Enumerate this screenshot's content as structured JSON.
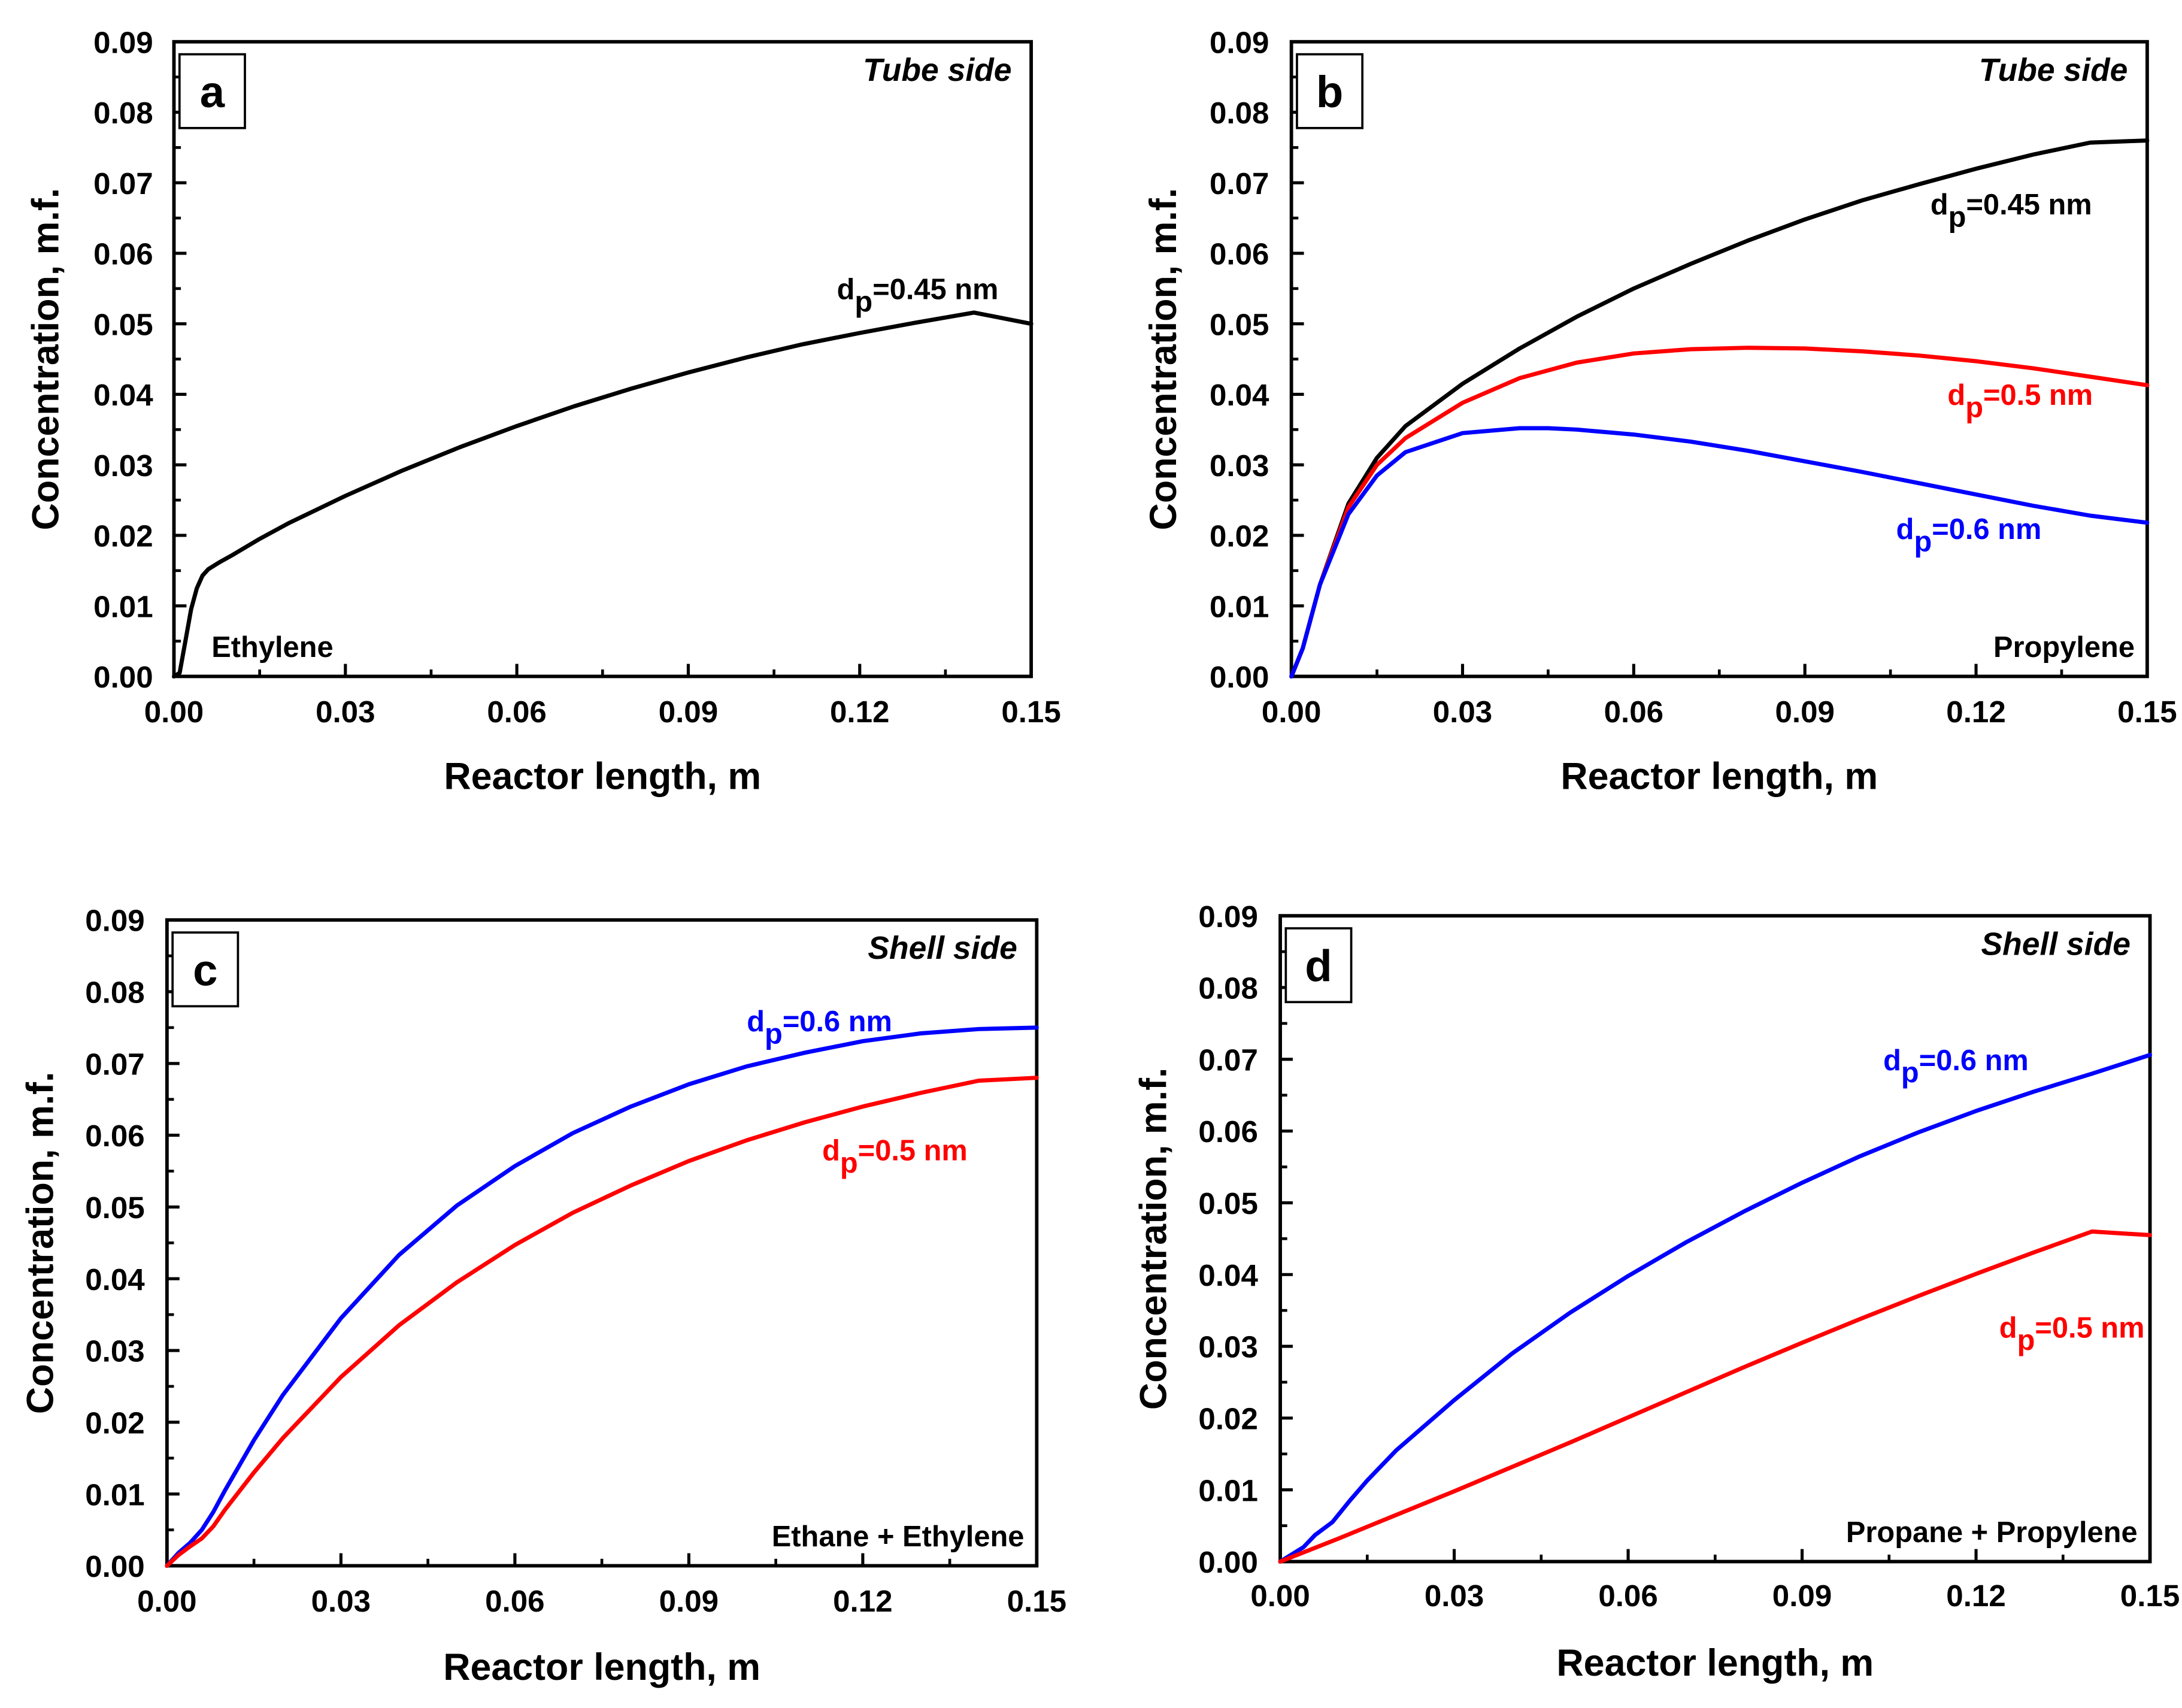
{
  "colors": {
    "black": "#000000",
    "red": "#ff0000",
    "blue": "#0000ff",
    "axis": "#000000"
  },
  "chart_data": [
    {
      "type": "line",
      "panel": "a",
      "side_label": "Tube side",
      "species_label": "Ethylene",
      "species_position": "bottom-left",
      "xlabel": "Reactor length, m",
      "ylabel": "Concentration, m.f.",
      "xlim": [
        0,
        0.15
      ],
      "ylim": [
        0,
        0.09
      ],
      "xticks": [
        "0.00",
        "0.03",
        "0.06",
        "0.09",
        "0.12",
        "0.15"
      ],
      "yticks": [
        "0.00",
        "0.01",
        "0.02",
        "0.03",
        "0.04",
        "0.05",
        "0.06",
        "0.07",
        "0.08",
        "0.09"
      ],
      "series": [
        {
          "name": "dp=0.45 nm",
          "label_main": "d",
          "label_sub": "p",
          "label_rest": "=0.45 nm",
          "color": "#000000",
          "label_at": [
            0.116,
            0.0535
          ],
          "x": [
            0,
            0.001,
            0.002,
            0.003,
            0.004,
            0.005,
            0.006,
            0.008,
            0.01,
            0.015,
            0.02,
            0.03,
            0.04,
            0.05,
            0.06,
            0.07,
            0.08,
            0.09,
            0.1,
            0.11,
            0.12,
            0.13,
            0.14,
            0.15
          ],
          "y": [
            0,
            0.0005,
            0.005,
            0.0095,
            0.0125,
            0.0143,
            0.0152,
            0.0162,
            0.0171,
            0.0195,
            0.0217,
            0.0256,
            0.0292,
            0.0325,
            0.0355,
            0.0383,
            0.0408,
            0.0431,
            0.0452,
            0.0471,
            0.0487,
            0.0502,
            0.0516,
            0.05
          ]
        }
      ]
    },
    {
      "type": "line",
      "panel": "b",
      "side_label": "Tube side",
      "species_label": "Propylene",
      "species_position": "bottom-right",
      "xlabel": "Reactor length, m",
      "ylabel": "Concentration, m.f.",
      "xlim": [
        0,
        0.15
      ],
      "ylim": [
        0,
        0.09
      ],
      "xticks": [
        "0.00",
        "0.03",
        "0.06",
        "0.09",
        "0.12",
        "0.15"
      ],
      "yticks": [
        "0.00",
        "0.01",
        "0.02",
        "0.03",
        "0.04",
        "0.05",
        "0.06",
        "0.07",
        "0.08",
        "0.09"
      ],
      "series": [
        {
          "name": "dp=0.45 nm",
          "label_main": "d",
          "label_sub": "p",
          "label_rest": "=0.45 nm",
          "color": "#000000",
          "label_at": [
            0.112,
            0.0655
          ],
          "x": [
            0,
            0.002,
            0.005,
            0.01,
            0.015,
            0.02,
            0.03,
            0.04,
            0.05,
            0.06,
            0.07,
            0.08,
            0.09,
            0.1,
            0.11,
            0.12,
            0.13,
            0.14,
            0.15
          ],
          "y": [
            0,
            0.004,
            0.013,
            0.0245,
            0.031,
            0.0355,
            0.0415,
            0.0465,
            0.051,
            0.055,
            0.0585,
            0.0618,
            0.0648,
            0.0675,
            0.0698,
            0.072,
            0.074,
            0.0757,
            0.076
          ]
        },
        {
          "name": "dp=0.5 nm",
          "label_main": "d",
          "label_sub": "p",
          "label_rest": "=0.5 nm",
          "color": "#ff0000",
          "label_at": [
            0.115,
            0.0385
          ],
          "x": [
            0,
            0.002,
            0.005,
            0.01,
            0.015,
            0.02,
            0.03,
            0.04,
            0.05,
            0.06,
            0.07,
            0.08,
            0.09,
            0.1,
            0.11,
            0.12,
            0.13,
            0.14,
            0.15
          ],
          "y": [
            0,
            0.004,
            0.013,
            0.024,
            0.03,
            0.0338,
            0.0388,
            0.0423,
            0.0445,
            0.0458,
            0.0464,
            0.0466,
            0.0465,
            0.0461,
            0.0455,
            0.0447,
            0.0437,
            0.0425,
            0.0413
          ]
        },
        {
          "name": "dp=0.6 nm",
          "label_main": "d",
          "label_sub": "p",
          "label_rest": "=0.6 nm",
          "color": "#0000ff",
          "label_at": [
            0.106,
            0.0195
          ],
          "x": [
            0,
            0.002,
            0.005,
            0.01,
            0.015,
            0.02,
            0.03,
            0.04,
            0.045,
            0.05,
            0.06,
            0.07,
            0.08,
            0.09,
            0.1,
            0.11,
            0.12,
            0.13,
            0.14,
            0.15
          ],
          "y": [
            0,
            0.004,
            0.013,
            0.023,
            0.0285,
            0.0318,
            0.0345,
            0.0352,
            0.0352,
            0.035,
            0.0343,
            0.0333,
            0.032,
            0.0305,
            0.029,
            0.0274,
            0.0258,
            0.0242,
            0.0228,
            0.0218
          ]
        }
      ]
    },
    {
      "type": "line",
      "panel": "c",
      "side_label": "Shell side",
      "species_label": "Ethane + Ethylene",
      "species_position": "bottom-right",
      "xlabel": "Reactor length, m",
      "ylabel": "Concentration, m.f.",
      "xlim": [
        0,
        0.15
      ],
      "ylim": [
        0,
        0.09
      ],
      "xticks": [
        "0.00",
        "0.03",
        "0.06",
        "0.09",
        "0.12",
        "0.15"
      ],
      "yticks": [
        "0.00",
        "0.01",
        "0.02",
        "0.03",
        "0.04",
        "0.05",
        "0.06",
        "0.07",
        "0.08",
        "0.09"
      ],
      "series": [
        {
          "name": "dp=0.6 nm",
          "label_main": "d",
          "label_sub": "p",
          "label_rest": "=0.6 nm",
          "color": "#0000ff",
          "label_at": [
            0.1,
            0.0745
          ],
          "x": [
            0,
            0.002,
            0.004,
            0.006,
            0.008,
            0.01,
            0.015,
            0.02,
            0.03,
            0.04,
            0.05,
            0.06,
            0.07,
            0.08,
            0.09,
            0.1,
            0.11,
            0.12,
            0.13,
            0.14,
            0.15
          ],
          "y": [
            0,
            0.0018,
            0.0032,
            0.005,
            0.0075,
            0.0105,
            0.0175,
            0.0238,
            0.0345,
            0.0433,
            0.0502,
            0.0557,
            0.0603,
            0.064,
            0.0671,
            0.0696,
            0.0715,
            0.0731,
            0.0742,
            0.0748,
            0.075
          ]
        },
        {
          "name": "dp=0.5 nm",
          "label_main": "d",
          "label_sub": "p",
          "label_rest": "=0.5 nm",
          "color": "#ff0000",
          "label_at": [
            0.113,
            0.0565
          ],
          "x": [
            0,
            0.002,
            0.004,
            0.006,
            0.008,
            0.01,
            0.015,
            0.02,
            0.03,
            0.04,
            0.05,
            0.06,
            0.07,
            0.08,
            0.09,
            0.1,
            0.11,
            0.12,
            0.13,
            0.14,
            0.15
          ],
          "y": [
            0,
            0.0015,
            0.0027,
            0.0038,
            0.0055,
            0.0078,
            0.013,
            0.0178,
            0.0263,
            0.0335,
            0.0395,
            0.0447,
            0.0492,
            0.053,
            0.0564,
            0.0593,
            0.0618,
            0.064,
            0.0659,
            0.0676,
            0.068
          ]
        }
      ]
    },
    {
      "type": "line",
      "panel": "d",
      "side_label": "Shell side",
      "species_label": "Propane + Propylene",
      "species_position": "bottom-right",
      "xlabel": "Reactor length, m",
      "ylabel": "Concentration, m.f.",
      "xlim": [
        0,
        0.15
      ],
      "ylim": [
        0,
        0.09
      ],
      "xticks": [
        "0.00",
        "0.03",
        "0.06",
        "0.09",
        "0.12",
        "0.15"
      ],
      "yticks": [
        "0.00",
        "0.01",
        "0.02",
        "0.03",
        "0.04",
        "0.05",
        "0.06",
        "0.07",
        "0.08",
        "0.09"
      ],
      "series": [
        {
          "name": "dp=0.6 nm",
          "label_main": "d",
          "label_sub": "p",
          "label_rest": "=0.6 nm",
          "color": "#0000ff",
          "label_at": [
            0.104,
            0.0685
          ],
          "x": [
            0,
            0.002,
            0.004,
            0.006,
            0.009,
            0.012,
            0.015,
            0.02,
            0.03,
            0.04,
            0.05,
            0.06,
            0.07,
            0.08,
            0.09,
            0.1,
            0.11,
            0.12,
            0.13,
            0.14,
            0.15
          ],
          "y": [
            0,
            0.001,
            0.002,
            0.0037,
            0.0055,
            0.0085,
            0.0113,
            0.0155,
            0.0225,
            0.029,
            0.0347,
            0.0398,
            0.0445,
            0.0488,
            0.0528,
            0.0565,
            0.0598,
            0.0628,
            0.0655,
            0.068,
            0.0706
          ]
        },
        {
          "name": "dp=0.5 nm",
          "label_main": "d",
          "label_sub": "p",
          "label_rest": "=0.5 nm",
          "color": "#ff0000",
          "label_at": [
            0.124,
            0.0312
          ],
          "x": [
            0,
            0.01,
            0.02,
            0.03,
            0.04,
            0.05,
            0.06,
            0.07,
            0.08,
            0.09,
            0.1,
            0.11,
            0.12,
            0.13,
            0.14,
            0.15
          ],
          "y": [
            0,
            0.0032,
            0.0065,
            0.0098,
            0.0132,
            0.0166,
            0.0201,
            0.0236,
            0.0271,
            0.0305,
            0.0338,
            0.037,
            0.0401,
            0.0431,
            0.046,
            0.0455
          ]
        }
      ]
    }
  ]
}
